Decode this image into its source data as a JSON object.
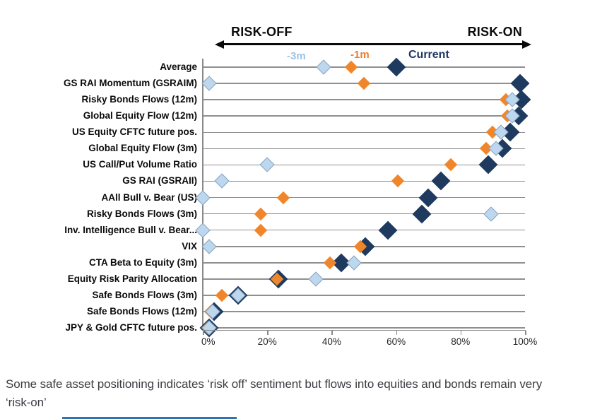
{
  "caption": {
    "text": "Some safe asset positioning indicates ‘risk off’ sentiment but flows into equities and bonds remain very ‘risk-on’"
  },
  "legend": [
    {
      "name": "-3m",
      "color": "#9DC3E6"
    },
    {
      "name": "-1m",
      "color": "#ED7D31"
    },
    {
      "name": "Current",
      "color": "#1F3864"
    }
  ],
  "chart_data": {
    "type": "scatter",
    "subtype": "dot-plot, one row per indicator, diamond markers",
    "title": "",
    "xlabel": "",
    "ylabel": "",
    "x_axis": {
      "min": 0,
      "max": 100,
      "tick_values": [
        0,
        20,
        40,
        60,
        80,
        100
      ],
      "tick_labels": [
        "0%",
        "20%",
        "40%",
        "60%",
        "80%",
        "100%"
      ]
    },
    "annotations": {
      "left": "RISK-OFF",
      "right": "RISK-ON"
    },
    "legend_position": "top, inline colored labels",
    "grid": "horizontal row lines",
    "categories": [
      "Average",
      "GS RAI Momentum (GSRAIM)",
      "Risky Bonds Flows (12m)",
      "Global Equity Flow (12m)",
      "US Equity CFTC future pos.",
      "Global Equity Flow (3m)",
      "US Call/Put Volume Ratio",
      "GS RAI (GSRAII)",
      "AAll Bull v. Bear (US)",
      "Risky Bonds Flows (3m)",
      "Inv. Intelligence Bull v. Bear...",
      "VIX",
      "CTA Beta to Equity (3m)",
      "Equity Risk Parity Allocation",
      "Safe Bonds Flows (3m)",
      "Safe Bonds Flows (12m)",
      "JPY & Gold CFTC future pos."
    ],
    "series": [
      {
        "name": "-3m",
        "color": "#BDD7EE",
        "border": "#86A2BE",
        "values": [
          37.5,
          2,
          96,
          96,
          92.5,
          91,
          20,
          6,
          0,
          89.5,
          0,
          2,
          47,
          35,
          11,
          3,
          2
        ]
      },
      {
        "name": "-1m",
        "color": "#F0862B",
        "border": null,
        "values": [
          46,
          50,
          94,
          94.5,
          90,
          88,
          77,
          60.5,
          25,
          18,
          18,
          49,
          39.5,
          23,
          6,
          2.5,
          1.5
        ]
      },
      {
        "name": "Current",
        "color": "#1E3A5F",
        "border": null,
        "values": [
          60,
          98.5,
          99,
          98,
          95.5,
          93,
          88.5,
          74,
          70,
          68,
          57.5,
          50.5,
          43,
          23.5,
          11,
          3.5,
          2
        ]
      }
    ]
  }
}
